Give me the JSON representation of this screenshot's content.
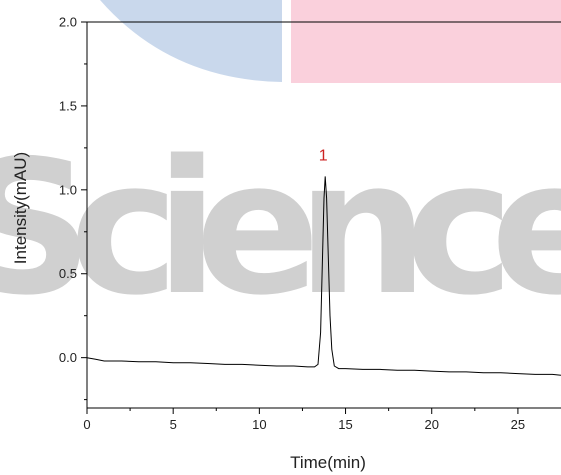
{
  "chart_data": {
    "type": "line",
    "title": "",
    "xlabel": "Time(min)",
    "ylabel": "Intensity(mAU)",
    "xlim": [
      0,
      27.5
    ],
    "ylim": [
      -0.3,
      2.0
    ],
    "x_ticks": [
      0,
      5,
      10,
      15,
      20,
      25
    ],
    "y_ticks": [
      0.0,
      0.5,
      1.0,
      1.5,
      2.0
    ],
    "x_tick_labels": [
      "0",
      "5",
      "10",
      "15",
      "20",
      "25"
    ],
    "y_tick_labels": [
      "0.0",
      "0.5",
      "1.0",
      "1.5",
      "2.0"
    ],
    "grid": false,
    "line_color": "#000000",
    "peak_label_color": "#cc2222",
    "series": [
      {
        "points": [
          [
            0.0,
            0.0
          ],
          [
            0.5,
            -0.01
          ],
          [
            1.0,
            -0.02
          ],
          [
            2.0,
            -0.02
          ],
          [
            3.0,
            -0.025
          ],
          [
            4.0,
            -0.025
          ],
          [
            5.0,
            -0.03
          ],
          [
            6.0,
            -0.03
          ],
          [
            7.0,
            -0.035
          ],
          [
            8.0,
            -0.04
          ],
          [
            9.0,
            -0.04
          ],
          [
            10.0,
            -0.045
          ],
          [
            11.0,
            -0.05
          ],
          [
            12.0,
            -0.05
          ],
          [
            12.8,
            -0.055
          ],
          [
            13.2,
            -0.055
          ],
          [
            13.4,
            -0.04
          ],
          [
            13.55,
            0.15
          ],
          [
            13.65,
            0.55
          ],
          [
            13.75,
            0.95
          ],
          [
            13.82,
            1.08
          ],
          [
            13.9,
            0.95
          ],
          [
            14.0,
            0.6
          ],
          [
            14.1,
            0.25
          ],
          [
            14.2,
            0.05
          ],
          [
            14.35,
            -0.05
          ],
          [
            14.6,
            -0.065
          ],
          [
            15.0,
            -0.065
          ],
          [
            16.0,
            -0.07
          ],
          [
            17.0,
            -0.07
          ],
          [
            18.0,
            -0.075
          ],
          [
            19.0,
            -0.075
          ],
          [
            20.0,
            -0.08
          ],
          [
            21.0,
            -0.085
          ],
          [
            22.0,
            -0.085
          ],
          [
            23.0,
            -0.09
          ],
          [
            24.0,
            -0.09
          ],
          [
            25.0,
            -0.095
          ],
          [
            26.0,
            -0.1
          ],
          [
            27.0,
            -0.1
          ],
          [
            27.5,
            -0.105
          ]
        ]
      }
    ],
    "annotations": [
      {
        "text": "1",
        "x": 13.82,
        "y": 1.08
      }
    ]
  },
  "watermark": {
    "text": "Science",
    "colors": {
      "blue": "#c9d8ec",
      "pink": "#fad0dc",
      "gray": "#d0d0d0"
    }
  }
}
